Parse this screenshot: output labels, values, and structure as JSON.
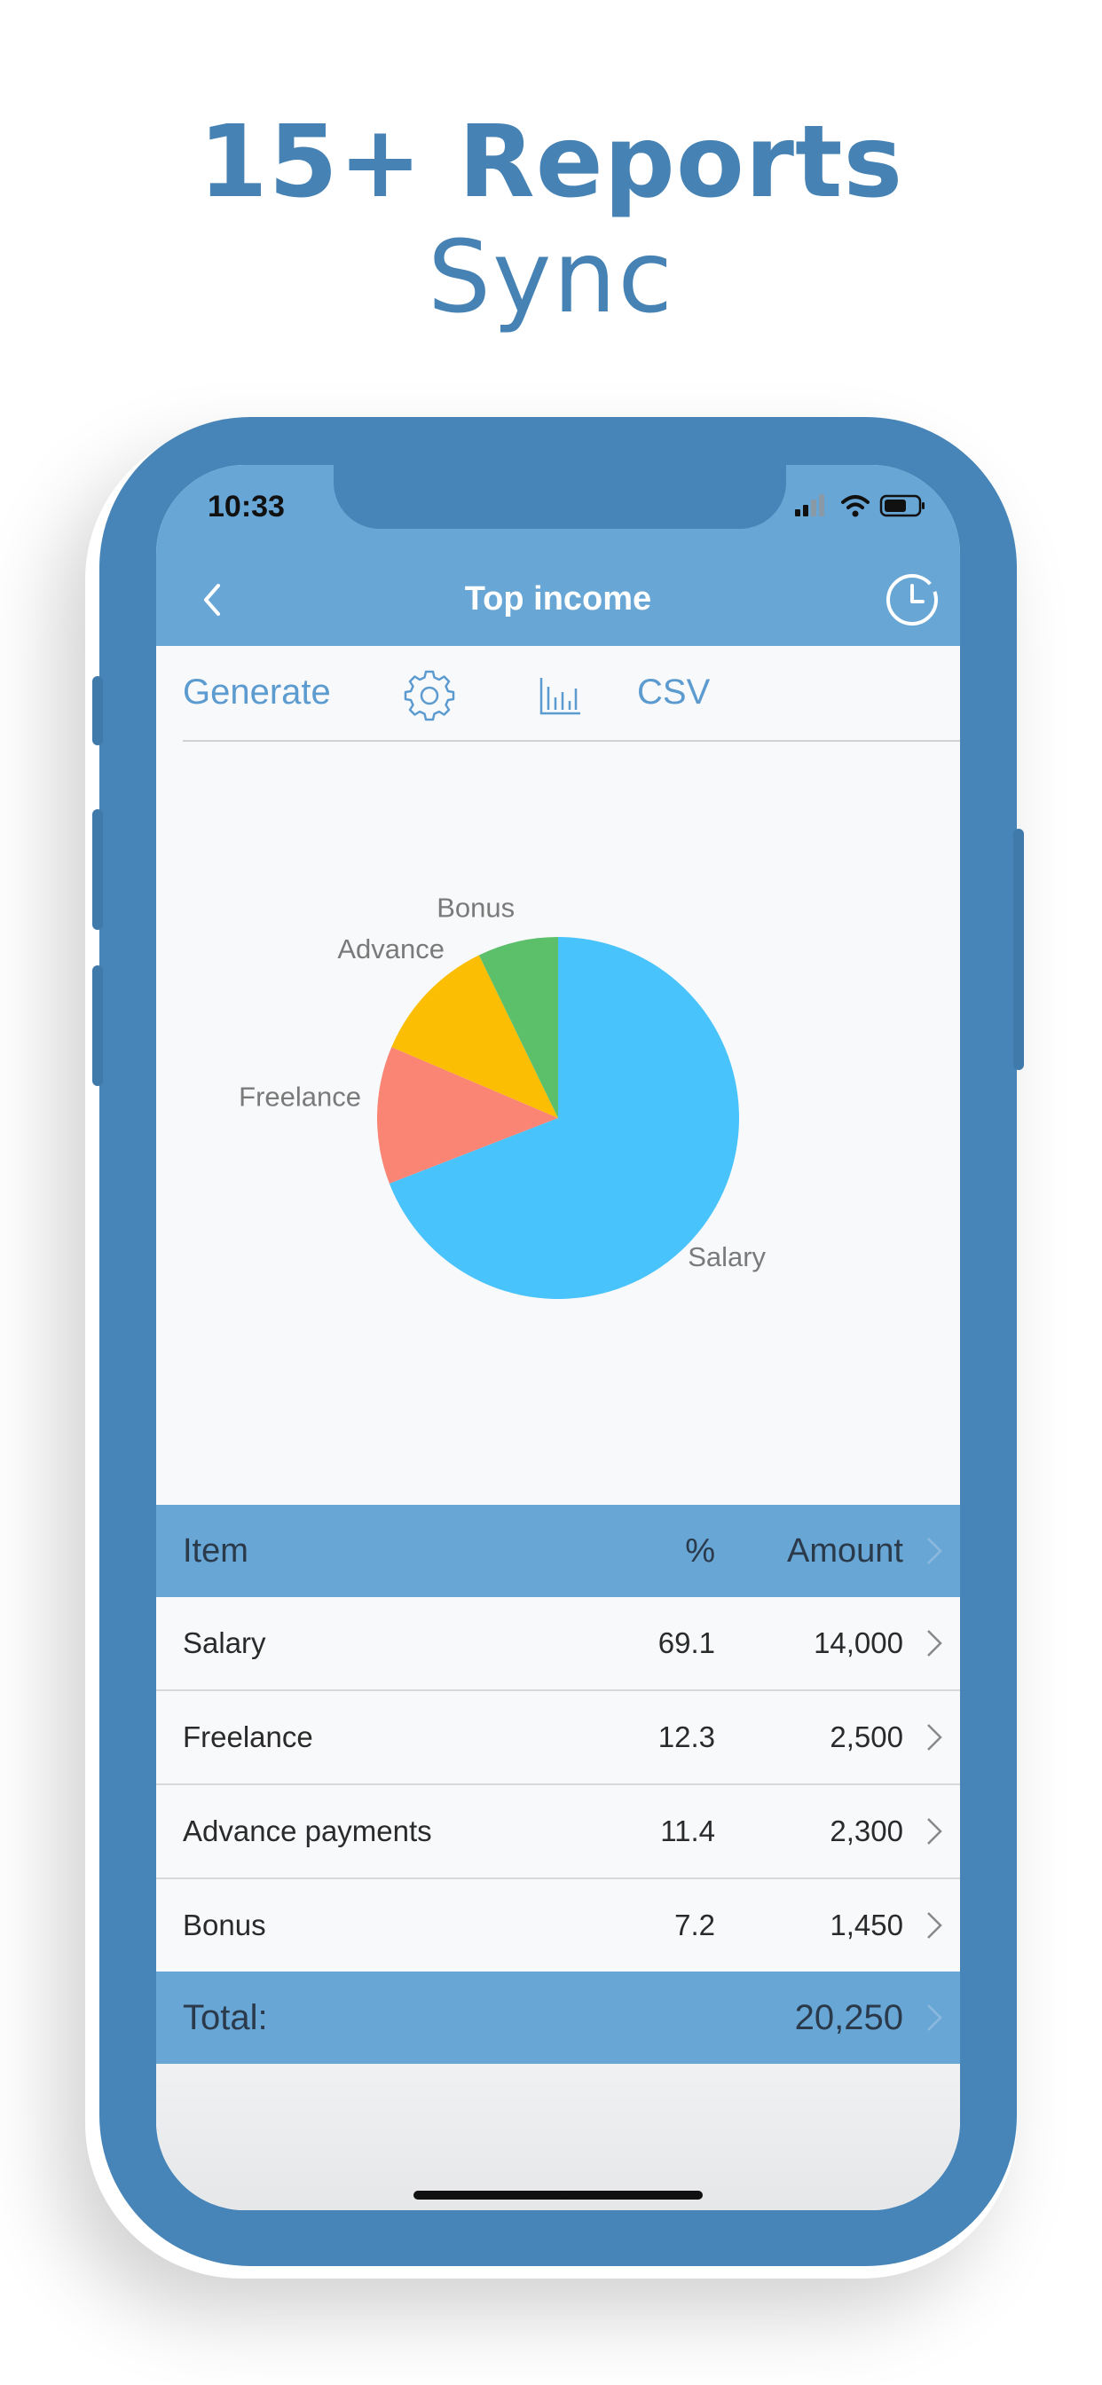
{
  "promo": {
    "headline": "15+ Reports",
    "subheadline": "Sync"
  },
  "status_bar": {
    "time": "10:33"
  },
  "nav": {
    "back_icon": "chevron-left-icon",
    "title": "Top income",
    "history_icon": "clock-icon"
  },
  "toolbar": {
    "generate_label": "Generate",
    "settings_icon": "gear-icon",
    "chart_icon": "bar-chart-icon",
    "csv_label": "CSV"
  },
  "chart_data": {
    "type": "pie",
    "categories": [
      "Salary",
      "Freelance",
      "Advance",
      "Bonus"
    ],
    "values": [
      69.1,
      12.3,
      11.4,
      7.2
    ],
    "colors": [
      "#49c3fb",
      "#fa8575",
      "#fbbe03",
      "#5cc06b"
    ],
    "label_color": "#7a7a7a",
    "legend": "none"
  },
  "table": {
    "header": {
      "item": "Item",
      "percent": "%",
      "amount": "Amount"
    },
    "rows": [
      {
        "item": "Salary",
        "percent": "69.1",
        "amount": "14,000"
      },
      {
        "item": "Freelance",
        "percent": "12.3",
        "amount": "2,500"
      },
      {
        "item": "Advance payments",
        "percent": "11.4",
        "amount": "2,300"
      },
      {
        "item": "Bonus",
        "percent": "7.2",
        "amount": "1,450"
      }
    ],
    "total": {
      "label": "Total:",
      "amount": "20,250"
    }
  },
  "colors": {
    "accent": "#4785b8",
    "nav_bar": "#68a6d6",
    "toolbar_text": "#5b9bd0"
  }
}
